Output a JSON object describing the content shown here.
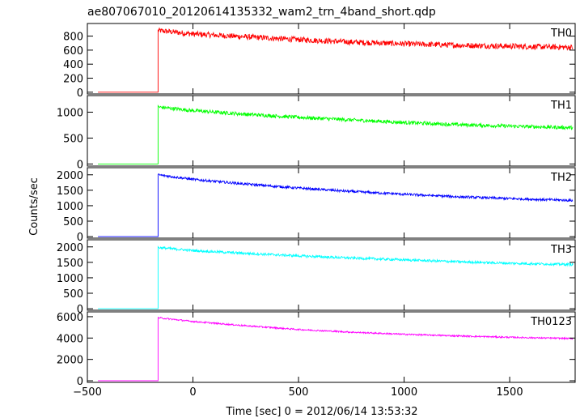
{
  "chart_data": {
    "type": "line",
    "title": "ae807067010_20120614135332_wam2_trn_4band_short.qdp",
    "xlabel": "Time [sec] 0 = 2012/06/14 13:53:32",
    "ylabel": "Counts/sec",
    "xlim": [
      -500,
      1810
    ],
    "x_ticks": [
      -500,
      0,
      500,
      1000,
      1500
    ],
    "x_tick_labels": [
      "−500",
      "0",
      "500",
      "1000",
      "1500"
    ],
    "grid": false,
    "trigger_time": -165,
    "data_start": -450,
    "data_end": 1800,
    "series": [
      {
        "name": "TH0",
        "color": "#ff0000",
        "ylim": [
          -25,
          980
        ],
        "yticks": [
          0,
          200,
          400,
          600,
          800
        ],
        "pre_trigger_level": 0,
        "profile_t": [
          -165,
          0,
          250,
          500,
          750,
          1000,
          1250,
          1500,
          1800
        ],
        "profile_v": [
          880,
          830,
          790,
          750,
          715,
          690,
          670,
          655,
          640
        ],
        "noise": 40
      },
      {
        "name": "TH1",
        "color": "#00ff00",
        "ylim": [
          -40,
          1320
        ],
        "yticks": [
          0,
          500,
          1000
        ],
        "pre_trigger_level": 0,
        "profile_t": [
          -165,
          0,
          250,
          500,
          750,
          1000,
          1250,
          1500,
          1800
        ],
        "profile_v": [
          1100,
          1030,
          960,
          900,
          850,
          800,
          760,
          730,
          700
        ],
        "noise": 35
      },
      {
        "name": "TH2",
        "color": "#0000ff",
        "ylim": [
          -50,
          2230
        ],
        "yticks": [
          0,
          500,
          1000,
          1500,
          2000
        ],
        "pre_trigger_level": 0,
        "profile_t": [
          -165,
          0,
          250,
          500,
          750,
          1000,
          1250,
          1500,
          1800
        ],
        "profile_v": [
          2000,
          1850,
          1700,
          1570,
          1460,
          1370,
          1290,
          1230,
          1170
        ],
        "noise": 40
      },
      {
        "name": "TH3",
        "color": "#00ffff",
        "ylim": [
          -50,
          2230
        ],
        "yticks": [
          0,
          500,
          1000,
          1500,
          2000
        ],
        "pre_trigger_level": 0,
        "profile_t": [
          -165,
          0,
          250,
          500,
          750,
          1000,
          1250,
          1500,
          1800
        ],
        "profile_v": [
          1980,
          1880,
          1790,
          1710,
          1640,
          1580,
          1520,
          1470,
          1430
        ],
        "noise": 40
      },
      {
        "name": "TH0123",
        "color": "#ff00ff",
        "ylim": [
          -150,
          6450
        ],
        "yticks": [
          0,
          2000,
          4000,
          6000
        ],
        "pre_trigger_level": 0,
        "profile_t": [
          -165,
          0,
          250,
          500,
          750,
          1000,
          1250,
          1500,
          1800
        ],
        "profile_v": [
          5900,
          5550,
          5150,
          4800,
          4550,
          4350,
          4200,
          4070,
          3950
        ],
        "noise": 70
      }
    ]
  }
}
